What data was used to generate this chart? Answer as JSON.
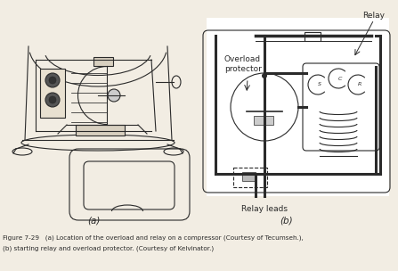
{
  "caption_line1": "Figure 7-29   (a) Location of the overload and relay on a compressor (Courtesy of Tecumseh.),",
  "caption_line2": "(b) starting relay and overload protector. (Courtesy of Kelvinator.)",
  "label_a": "(a)",
  "label_b": "(b)",
  "label_relay": "Relay",
  "label_overload": "Overload\nprotector",
  "label_relay_leads": "Relay leads",
  "bg_color": "#f2ede3",
  "line_color": "#2a2a2a",
  "fig_width": 4.47,
  "fig_height": 3.04,
  "dpi": 100
}
